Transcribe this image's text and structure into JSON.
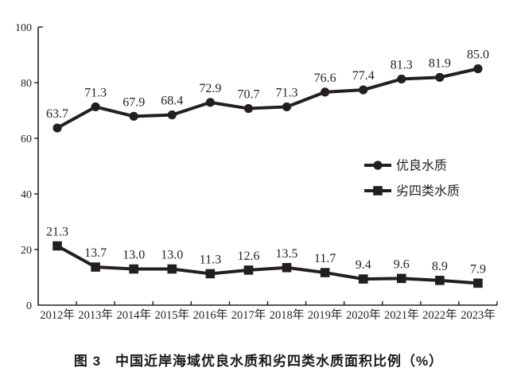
{
  "page": {
    "background_color": "#ffffff",
    "ink_color": "#231f20"
  },
  "chart_data": {
    "type": "line",
    "title": "图 3　中国近岸海域优良水质和劣四类水质面积比例（%）",
    "caption": "图 3　中国近岸海域优良水质和劣四类水质面积比例（%）",
    "categories": [
      "2012年",
      "2013年",
      "2014年",
      "2015年",
      "2016年",
      "2017年",
      "2018年",
      "2019年",
      "2020年",
      "2021年",
      "2022年",
      "2023年"
    ],
    "series": [
      {
        "name": "优良水质",
        "marker": "circle",
        "values": [
          63.7,
          71.3,
          67.9,
          68.4,
          72.9,
          70.7,
          71.3,
          76.6,
          77.4,
          81.3,
          81.9,
          85.0
        ]
      },
      {
        "name": "劣四类水质",
        "marker": "square",
        "values": [
          21.3,
          13.7,
          13.0,
          13.0,
          11.3,
          12.6,
          13.5,
          11.7,
          9.4,
          9.6,
          8.9,
          7.9
        ]
      }
    ],
    "y_ticks": [
      0,
      20,
      40,
      60,
      80,
      100
    ],
    "ylim": [
      0,
      100
    ],
    "xlabel": "",
    "ylabel": "",
    "grid": false,
    "legend_position": "middle-right",
    "line_color": "#231f20",
    "data_labels_shown": true,
    "label_decimals": 1
  }
}
